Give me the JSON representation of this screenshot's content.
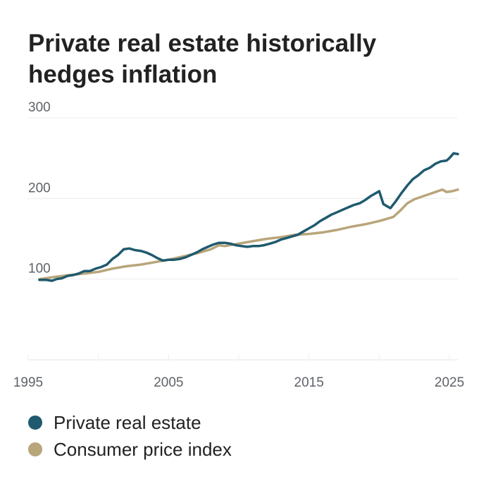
{
  "chart_data": {
    "type": "line",
    "title": "Private real estate historically hedges inflation",
    "xlabel": "",
    "ylabel": "",
    "xlim": [
      1995,
      2025.6
    ],
    "ylim": [
      0,
      300
    ],
    "x_ticks": [
      1995,
      2005,
      2015,
      2025
    ],
    "y_ticks": [
      100,
      200,
      300
    ],
    "grid": true,
    "legend": "bottom-left",
    "series": [
      {
        "name": "Private real estate",
        "color": "#1f5a6e",
        "points": [
          [
            1995.8,
            99
          ],
          [
            1996.3,
            99
          ],
          [
            1996.7,
            98
          ],
          [
            1997.0,
            100
          ],
          [
            1997.4,
            101
          ],
          [
            1997.8,
            104
          ],
          [
            1998.2,
            105
          ],
          [
            1998.6,
            107
          ],
          [
            1999.0,
            110
          ],
          [
            1999.4,
            110
          ],
          [
            1999.8,
            113
          ],
          [
            2000.2,
            115
          ],
          [
            2000.6,
            118
          ],
          [
            2001.0,
            125
          ],
          [
            2001.4,
            130
          ],
          [
            2001.8,
            137
          ],
          [
            2002.2,
            138
          ],
          [
            2002.6,
            136
          ],
          [
            2003.0,
            135
          ],
          [
            2003.4,
            133
          ],
          [
            2003.8,
            130
          ],
          [
            2004.2,
            126
          ],
          [
            2004.6,
            123
          ],
          [
            2005.0,
            124
          ],
          [
            2005.4,
            124
          ],
          [
            2005.8,
            125
          ],
          [
            2006.2,
            127
          ],
          [
            2006.6,
            130
          ],
          [
            2007.0,
            133
          ],
          [
            2007.4,
            137
          ],
          [
            2007.8,
            140
          ],
          [
            2008.2,
            143
          ],
          [
            2008.6,
            145
          ],
          [
            2009.0,
            145
          ],
          [
            2009.4,
            144
          ],
          [
            2009.8,
            142
          ],
          [
            2010.2,
            141
          ],
          [
            2010.6,
            140
          ],
          [
            2011.0,
            141
          ],
          [
            2011.4,
            141
          ],
          [
            2011.8,
            142
          ],
          [
            2012.2,
            144
          ],
          [
            2012.6,
            146
          ],
          [
            2013.0,
            149
          ],
          [
            2013.4,
            151
          ],
          [
            2013.8,
            153
          ],
          [
            2014.2,
            155
          ],
          [
            2014.6,
            159
          ],
          [
            2015.0,
            163
          ],
          [
            2015.4,
            167
          ],
          [
            2015.8,
            172
          ],
          [
            2016.2,
            176
          ],
          [
            2016.6,
            180
          ],
          [
            2017.0,
            183
          ],
          [
            2017.4,
            186
          ],
          [
            2017.8,
            189
          ],
          [
            2018.2,
            192
          ],
          [
            2018.6,
            194
          ],
          [
            2019.0,
            198
          ],
          [
            2019.4,
            203
          ],
          [
            2019.8,
            207
          ],
          [
            2020.0,
            209
          ],
          [
            2020.3,
            193
          ],
          [
            2020.8,
            188
          ],
          [
            2021.2,
            197
          ],
          [
            2021.6,
            207
          ],
          [
            2022.0,
            216
          ],
          [
            2022.4,
            224
          ],
          [
            2022.8,
            229
          ],
          [
            2023.2,
            235
          ],
          [
            2023.6,
            238
          ],
          [
            2024.0,
            243
          ],
          [
            2024.4,
            246
          ],
          [
            2024.8,
            247
          ],
          [
            2025.0,
            250
          ],
          [
            2025.3,
            256
          ],
          [
            2025.6,
            255
          ]
        ]
      },
      {
        "name": "Consumer price index",
        "color": "#b8a57a",
        "points": [
          [
            1995.8,
            100
          ],
          [
            1997.0,
            103
          ],
          [
            1998.0,
            105
          ],
          [
            1999.0,
            107
          ],
          [
            2000.0,
            109
          ],
          [
            2001.0,
            113
          ],
          [
            2002.0,
            116
          ],
          [
            2003.0,
            118
          ],
          [
            2004.0,
            121
          ],
          [
            2005.0,
            124
          ],
          [
            2006.0,
            128
          ],
          [
            2007.0,
            132
          ],
          [
            2008.0,
            137
          ],
          [
            2008.6,
            142
          ],
          [
            2009.0,
            141
          ],
          [
            2010.0,
            144
          ],
          [
            2011.0,
            147
          ],
          [
            2012.0,
            150
          ],
          [
            2013.0,
            152
          ],
          [
            2014.0,
            155
          ],
          [
            2015.0,
            156
          ],
          [
            2016.0,
            158
          ],
          [
            2017.0,
            161
          ],
          [
            2018.0,
            165
          ],
          [
            2019.0,
            168
          ],
          [
            2020.0,
            172
          ],
          [
            2021.0,
            177
          ],
          [
            2021.5,
            185
          ],
          [
            2022.0,
            194
          ],
          [
            2022.5,
            199
          ],
          [
            2023.0,
            202
          ],
          [
            2023.5,
            205
          ],
          [
            2024.0,
            208
          ],
          [
            2024.5,
            211
          ],
          [
            2024.8,
            208
          ],
          [
            2025.2,
            209
          ],
          [
            2025.6,
            211
          ]
        ]
      }
    ]
  }
}
